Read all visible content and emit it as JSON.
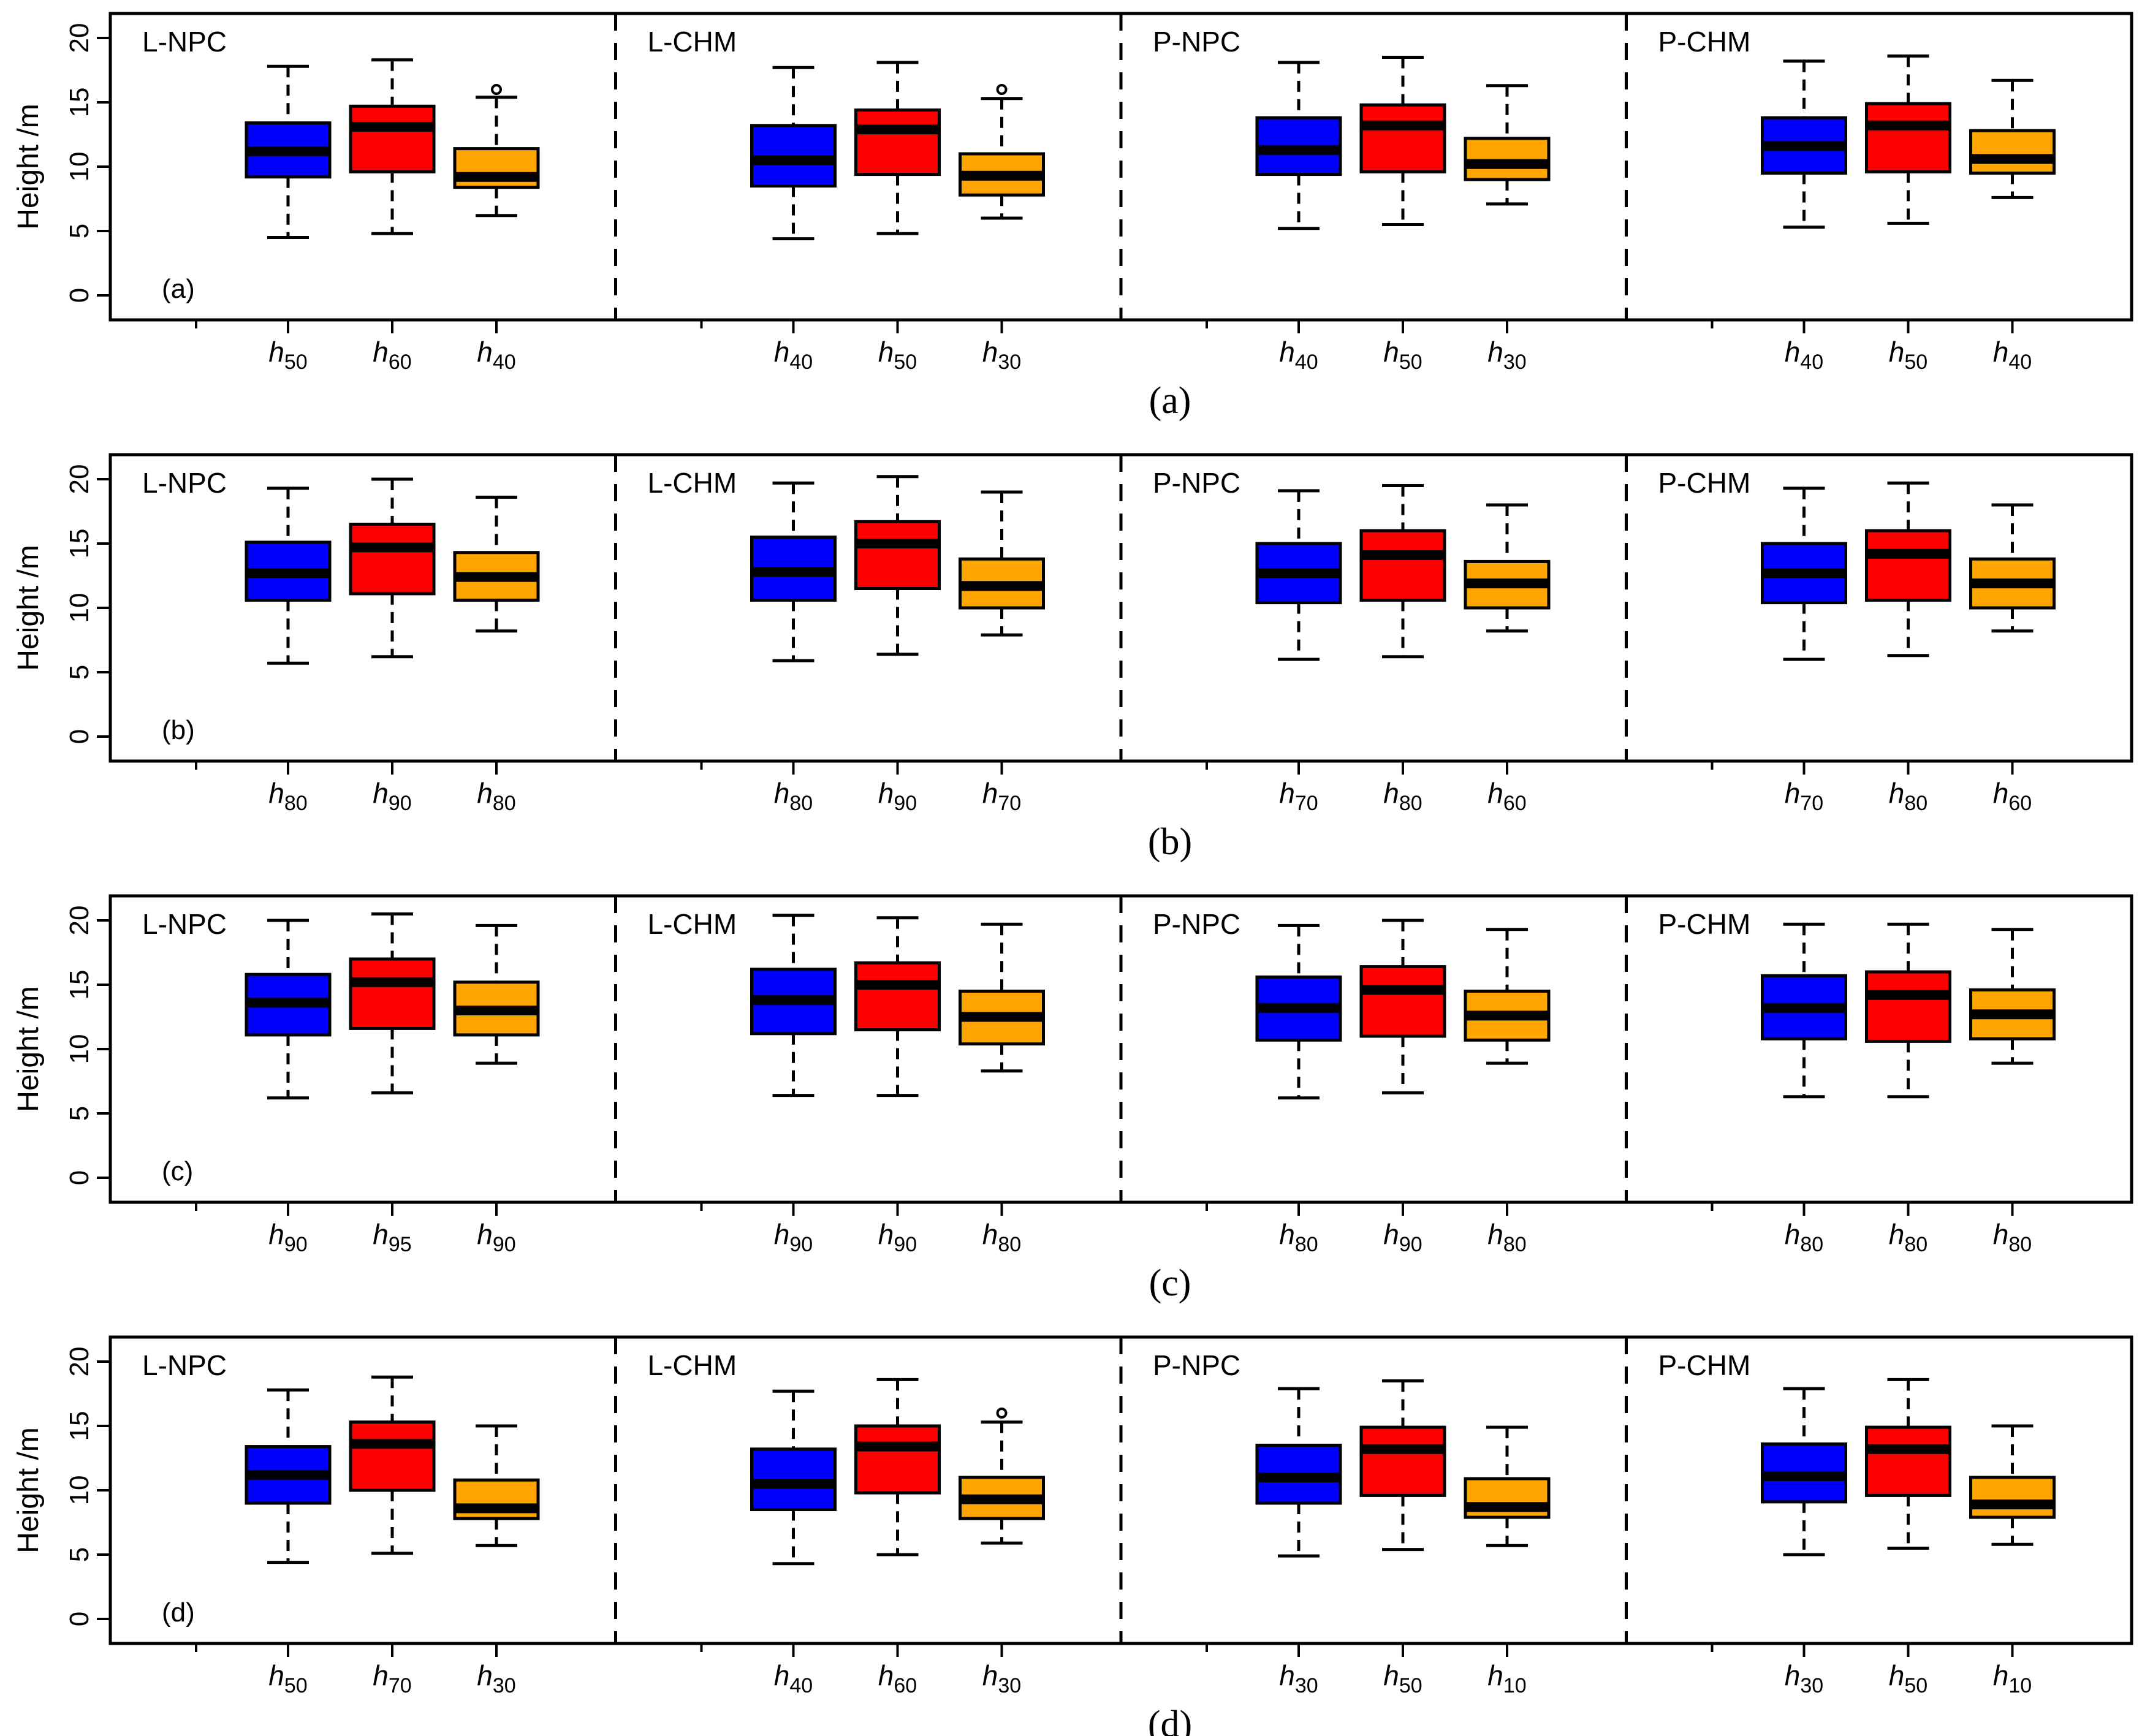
{
  "figure": {
    "colors": {
      "h1": "#0000FF",
      "h2": "#FF0000",
      "h3": "#FFA500",
      "line": "#000000"
    }
  },
  "chart_data": [
    {
      "type": "boxplot",
      "panel": "(a)",
      "caption": "(a)",
      "ylabel": "Height /m",
      "ylim": [
        0,
        20
      ],
      "yticks": [
        "0",
        "5",
        "10",
        "15",
        "20"
      ],
      "groups": [
        {
          "name": "L-NPC",
          "boxes": [
            {
              "var": "h",
              "sub": "50",
              "min": 4.5,
              "q1": 9.2,
              "median": 11.2,
              "q3": 13.4,
              "max": 17.8,
              "outliers": []
            },
            {
              "var": "h",
              "sub": "60",
              "min": 4.8,
              "q1": 9.6,
              "median": 13.1,
              "q3": 14.7,
              "max": 18.3,
              "outliers": []
            },
            {
              "var": "h",
              "sub": "40",
              "min": 6.2,
              "q1": 8.4,
              "median": 9.2,
              "q3": 11.4,
              "max": 15.4,
              "outliers": [
                16.0
              ]
            }
          ]
        },
        {
          "name": "L-CHM",
          "boxes": [
            {
              "var": "h",
              "sub": "40",
              "min": 4.4,
              "q1": 8.5,
              "median": 10.5,
              "q3": 13.2,
              "max": 17.7,
              "outliers": []
            },
            {
              "var": "h",
              "sub": "50",
              "min": 4.8,
              "q1": 9.4,
              "median": 12.9,
              "q3": 14.4,
              "max": 18.1,
              "outliers": []
            },
            {
              "var": "h",
              "sub": "30",
              "min": 6.0,
              "q1": 7.8,
              "median": 9.3,
              "q3": 11.0,
              "max": 15.3,
              "outliers": [
                16.0
              ]
            }
          ]
        },
        {
          "name": "P-NPC",
          "boxes": [
            {
              "var": "h",
              "sub": "40",
              "min": 5.2,
              "q1": 9.4,
              "median": 11.3,
              "q3": 13.8,
              "max": 18.1,
              "outliers": []
            },
            {
              "var": "h",
              "sub": "50",
              "min": 5.5,
              "q1": 9.6,
              "median": 13.2,
              "q3": 14.8,
              "max": 18.5,
              "outliers": []
            },
            {
              "var": "h",
              "sub": "30",
              "min": 7.1,
              "q1": 9.0,
              "median": 10.2,
              "q3": 12.2,
              "max": 16.3,
              "outliers": []
            }
          ]
        },
        {
          "name": "P-CHM",
          "boxes": [
            {
              "var": "h",
              "sub": "40",
              "min": 5.3,
              "q1": 9.5,
              "median": 11.6,
              "q3": 13.8,
              "max": 18.2,
              "outliers": []
            },
            {
              "var": "h",
              "sub": "50",
              "min": 5.6,
              "q1": 9.6,
              "median": 13.2,
              "q3": 14.9,
              "max": 18.6,
              "outliers": []
            },
            {
              "var": "h",
              "sub": "40",
              "min": 7.6,
              "q1": 9.5,
              "median": 10.6,
              "q3": 12.8,
              "max": 16.7,
              "outliers": []
            }
          ]
        }
      ]
    },
    {
      "type": "boxplot",
      "panel": "(b)",
      "caption": "(b)",
      "ylabel": "Height /m",
      "ylim": [
        0,
        20
      ],
      "yticks": [
        "0",
        "5",
        "10",
        "15",
        "20"
      ],
      "groups": [
        {
          "name": "L-NPC",
          "boxes": [
            {
              "var": "h",
              "sub": "80",
              "min": 5.7,
              "q1": 10.6,
              "median": 12.7,
              "q3": 15.1,
              "max": 19.3,
              "outliers": []
            },
            {
              "var": "h",
              "sub": "90",
              "min": 6.2,
              "q1": 11.1,
              "median": 14.7,
              "q3": 16.5,
              "max": 20.0,
              "outliers": []
            },
            {
              "var": "h",
              "sub": "80",
              "min": 8.2,
              "q1": 10.6,
              "median": 12.4,
              "q3": 14.3,
              "max": 18.6,
              "outliers": []
            }
          ]
        },
        {
          "name": "L-CHM",
          "boxes": [
            {
              "var": "h",
              "sub": "80",
              "min": 5.9,
              "q1": 10.6,
              "median": 12.8,
              "q3": 15.5,
              "max": 19.7,
              "outliers": []
            },
            {
              "var": "h",
              "sub": "90",
              "min": 6.4,
              "q1": 11.5,
              "median": 15.0,
              "q3": 16.7,
              "max": 20.2,
              "outliers": []
            },
            {
              "var": "h",
              "sub": "70",
              "min": 7.9,
              "q1": 10.0,
              "median": 11.7,
              "q3": 13.8,
              "max": 19.0,
              "outliers": []
            }
          ]
        },
        {
          "name": "P-NPC",
          "boxes": [
            {
              "var": "h",
              "sub": "70",
              "min": 6.0,
              "q1": 10.4,
              "median": 12.7,
              "q3": 15.0,
              "max": 19.1,
              "outliers": []
            },
            {
              "var": "h",
              "sub": "80",
              "min": 6.2,
              "q1": 10.6,
              "median": 14.1,
              "q3": 16.0,
              "max": 19.5,
              "outliers": []
            },
            {
              "var": "h",
              "sub": "60",
              "min": 8.2,
              "q1": 10.0,
              "median": 11.9,
              "q3": 13.6,
              "max": 18.0,
              "outliers": []
            }
          ]
        },
        {
          "name": "P-CHM",
          "boxes": [
            {
              "var": "h",
              "sub": "70",
              "min": 6.0,
              "q1": 10.4,
              "median": 12.7,
              "q3": 15.0,
              "max": 19.3,
              "outliers": []
            },
            {
              "var": "h",
              "sub": "80",
              "min": 6.3,
              "q1": 10.6,
              "median": 14.2,
              "q3": 16.0,
              "max": 19.7,
              "outliers": []
            },
            {
              "var": "h",
              "sub": "60",
              "min": 8.2,
              "q1": 10.0,
              "median": 11.9,
              "q3": 13.8,
              "max": 18.0,
              "outliers": []
            }
          ]
        }
      ]
    },
    {
      "type": "boxplot",
      "panel": "(c)",
      "caption": "(c)",
      "ylabel": "Height /m",
      "ylim": [
        0,
        20
      ],
      "yticks": [
        "0",
        "5",
        "10",
        "15",
        "20"
      ],
      "groups": [
        {
          "name": "L-NPC",
          "boxes": [
            {
              "var": "h",
              "sub": "90",
              "min": 6.2,
              "q1": 11.1,
              "median": 13.6,
              "q3": 15.8,
              "max": 20.0,
              "outliers": []
            },
            {
              "var": "h",
              "sub": "95",
              "min": 6.6,
              "q1": 11.6,
              "median": 15.2,
              "q3": 17.0,
              "max": 20.5,
              "outliers": []
            },
            {
              "var": "h",
              "sub": "90",
              "min": 8.9,
              "q1": 11.1,
              "median": 13.0,
              "q3": 15.2,
              "max": 19.6,
              "outliers": []
            }
          ]
        },
        {
          "name": "L-CHM",
          "boxes": [
            {
              "var": "h",
              "sub": "90",
              "min": 6.4,
              "q1": 11.2,
              "median": 13.8,
              "q3": 16.2,
              "max": 20.4,
              "outliers": []
            },
            {
              "var": "h",
              "sub": "90",
              "min": 6.4,
              "q1": 11.5,
              "median": 15.0,
              "q3": 16.7,
              "max": 20.2,
              "outliers": []
            },
            {
              "var": "h",
              "sub": "80",
              "min": 8.3,
              "q1": 10.4,
              "median": 12.5,
              "q3": 14.5,
              "max": 19.7,
              "outliers": []
            }
          ]
        },
        {
          "name": "P-NPC",
          "boxes": [
            {
              "var": "h",
              "sub": "80",
              "min": 6.2,
              "q1": 10.7,
              "median": 13.2,
              "q3": 15.6,
              "max": 19.6,
              "outliers": []
            },
            {
              "var": "h",
              "sub": "90",
              "min": 6.6,
              "q1": 11.0,
              "median": 14.6,
              "q3": 16.4,
              "max": 20.0,
              "outliers": []
            },
            {
              "var": "h",
              "sub": "80",
              "min": 8.9,
              "q1": 10.7,
              "median": 12.6,
              "q3": 14.5,
              "max": 19.3,
              "outliers": []
            }
          ]
        },
        {
          "name": "P-CHM",
          "boxes": [
            {
              "var": "h",
              "sub": "80",
              "min": 6.3,
              "q1": 10.8,
              "median": 13.2,
              "q3": 15.7,
              "max": 19.7,
              "outliers": []
            },
            {
              "var": "h",
              "sub": "80",
              "min": 6.3,
              "q1": 10.6,
              "median": 14.2,
              "q3": 16.0,
              "max": 19.7,
              "outliers": []
            },
            {
              "var": "h",
              "sub": "80",
              "min": 8.9,
              "q1": 10.8,
              "median": 12.7,
              "q3": 14.6,
              "max": 19.3,
              "outliers": []
            }
          ]
        }
      ]
    },
    {
      "type": "boxplot",
      "panel": "(d)",
      "caption": "(d)",
      "ylabel": "Height /m",
      "ylim": [
        0,
        20
      ],
      "yticks": [
        "0",
        "5",
        "10",
        "15",
        "20"
      ],
      "groups": [
        {
          "name": "L-NPC",
          "boxes": [
            {
              "var": "h",
              "sub": "50",
              "min": 4.4,
              "q1": 9.0,
              "median": 11.2,
              "q3": 13.4,
              "max": 17.8,
              "outliers": []
            },
            {
              "var": "h",
              "sub": "70",
              "min": 5.1,
              "q1": 10.0,
              "median": 13.6,
              "q3": 15.3,
              "max": 18.8,
              "outliers": []
            },
            {
              "var": "h",
              "sub": "30",
              "min": 5.7,
              "q1": 7.8,
              "median": 8.6,
              "q3": 10.8,
              "max": 15.0,
              "outliers": []
            }
          ]
        },
        {
          "name": "L-CHM",
          "boxes": [
            {
              "var": "h",
              "sub": "40",
              "min": 4.3,
              "q1": 8.5,
              "median": 10.5,
              "q3": 13.2,
              "max": 17.7,
              "outliers": []
            },
            {
              "var": "h",
              "sub": "60",
              "min": 5.0,
              "q1": 9.8,
              "median": 13.4,
              "q3": 15.0,
              "max": 18.6,
              "outliers": []
            },
            {
              "var": "h",
              "sub": "30",
              "min": 5.9,
              "q1": 7.8,
              "median": 9.3,
              "q3": 11.0,
              "max": 15.3,
              "outliers": [
                16.0
              ]
            }
          ]
        },
        {
          "name": "P-NPC",
          "boxes": [
            {
              "var": "h",
              "sub": "30",
              "min": 4.9,
              "q1": 9.0,
              "median": 11.0,
              "q3": 13.5,
              "max": 17.9,
              "outliers": []
            },
            {
              "var": "h",
              "sub": "50",
              "min": 5.4,
              "q1": 9.6,
              "median": 13.2,
              "q3": 14.9,
              "max": 18.5,
              "outliers": []
            },
            {
              "var": "h",
              "sub": "10",
              "min": 5.7,
              "q1": 7.9,
              "median": 8.7,
              "q3": 10.9,
              "max": 14.9,
              "outliers": []
            }
          ]
        },
        {
          "name": "P-CHM",
          "boxes": [
            {
              "var": "h",
              "sub": "30",
              "min": 5.0,
              "q1": 9.1,
              "median": 11.1,
              "q3": 13.6,
              "max": 17.9,
              "outliers": []
            },
            {
              "var": "h",
              "sub": "50",
              "min": 5.5,
              "q1": 9.6,
              "median": 13.2,
              "q3": 14.9,
              "max": 18.6,
              "outliers": []
            },
            {
              "var": "h",
              "sub": "10",
              "min": 5.8,
              "q1": 7.9,
              "median": 8.9,
              "q3": 11.0,
              "max": 15.0,
              "outliers": []
            }
          ]
        }
      ]
    }
  ]
}
